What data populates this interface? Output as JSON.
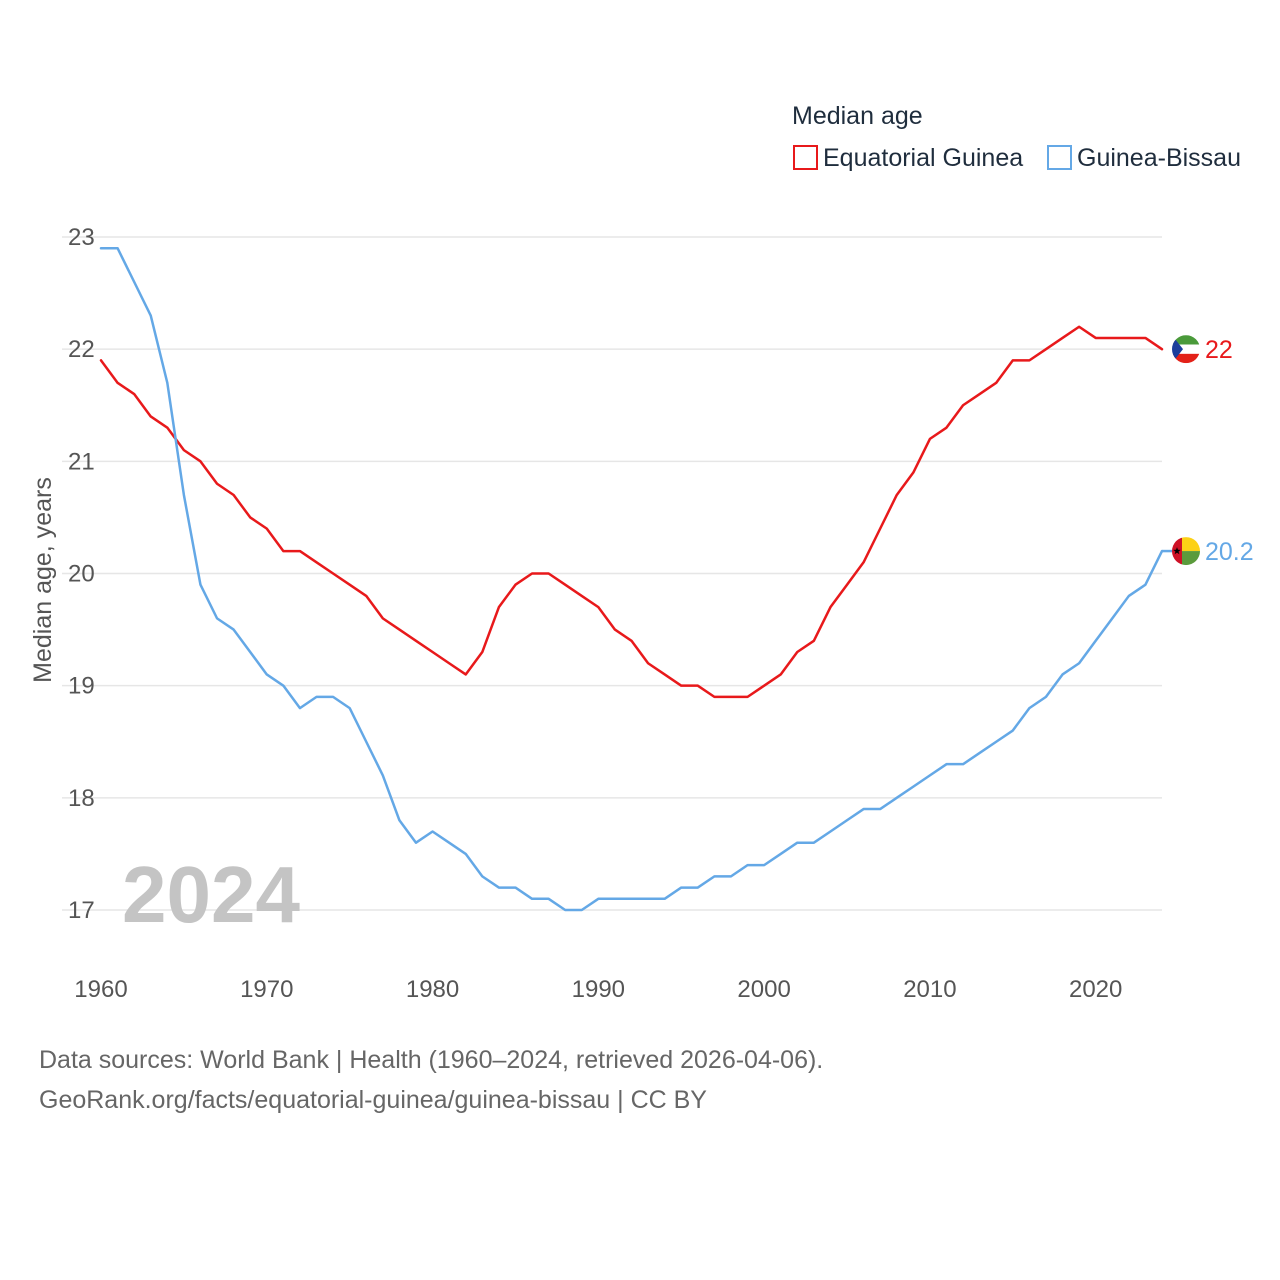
{
  "colors": {
    "equatorial_guinea": "#e8191b",
    "guinea_bissau": "#64a8e6",
    "grid": "#e6e6e6",
    "flag_eg_green": "#4a9a3a",
    "flag_eg_red": "#e32118",
    "flag_eg_blue": "#1b3e9c",
    "flag_gb_red": "#ce1126",
    "flag_gb_yellow": "#fcd116",
    "flag_gb_green": "#5b9b3c"
  },
  "source": {
    "line1": "Data sources: World Bank | Health (1960–2024, retrieved 2026-04-06).",
    "line2": "GeoRank.org/facts/equatorial-guinea/guinea-bissau | CC BY"
  },
  "chart_data": {
    "type": "line",
    "legend_title": "Median age",
    "ylabel": "Median age, years",
    "xlabel": "",
    "year_label": "2024",
    "xlim": [
      1960,
      2024
    ],
    "ylim": [
      16.5,
      23.3
    ],
    "x_ticks": [
      1960,
      1970,
      1980,
      1990,
      2000,
      2010,
      2020
    ],
    "y_ticks": [
      17,
      18,
      19,
      20,
      21,
      22,
      23
    ],
    "legend_position": "top-right",
    "x": [
      1960,
      1961,
      1962,
      1963,
      1964,
      1965,
      1966,
      1967,
      1968,
      1969,
      1970,
      1971,
      1972,
      1973,
      1974,
      1975,
      1976,
      1977,
      1978,
      1979,
      1980,
      1981,
      1982,
      1983,
      1984,
      1985,
      1986,
      1987,
      1988,
      1989,
      1990,
      1991,
      1992,
      1993,
      1994,
      1995,
      1996,
      1997,
      1998,
      1999,
      2000,
      2001,
      2002,
      2003,
      2004,
      2005,
      2006,
      2007,
      2008,
      2009,
      2010,
      2011,
      2012,
      2013,
      2014,
      2015,
      2016,
      2017,
      2018,
      2019,
      2020,
      2021,
      2022,
      2023,
      2024
    ],
    "series": [
      {
        "name": "Equatorial Guinea",
        "end_label": "22",
        "values": [
          21.9,
          21.7,
          21.6,
          21.4,
          21.3,
          21.1,
          21.0,
          20.8,
          20.7,
          20.5,
          20.4,
          20.2,
          20.2,
          20.1,
          20.0,
          19.9,
          19.8,
          19.6,
          19.5,
          19.4,
          19.3,
          19.2,
          19.1,
          19.3,
          19.7,
          19.9,
          20.0,
          20.0,
          19.9,
          19.8,
          19.7,
          19.5,
          19.4,
          19.2,
          19.1,
          19.0,
          19.0,
          18.9,
          18.9,
          18.9,
          19.0,
          19.1,
          19.3,
          19.4,
          19.7,
          19.9,
          20.1,
          20.4,
          20.7,
          20.9,
          21.2,
          21.3,
          21.5,
          21.6,
          21.7,
          21.9,
          21.9,
          22.0,
          22.1,
          22.2,
          22.1,
          22.1,
          22.1,
          22.1,
          22.0
        ]
      },
      {
        "name": "Guinea-Bissau",
        "end_label": "20.2",
        "values": [
          22.9,
          22.9,
          22.6,
          22.3,
          21.7,
          20.7,
          19.9,
          19.6,
          19.5,
          19.3,
          19.1,
          19.0,
          18.8,
          18.9,
          18.9,
          18.8,
          18.5,
          18.2,
          17.8,
          17.6,
          17.7,
          17.6,
          17.5,
          17.3,
          17.2,
          17.2,
          17.1,
          17.1,
          17.0,
          17.0,
          17.1,
          17.1,
          17.1,
          17.1,
          17.1,
          17.2,
          17.2,
          17.3,
          17.3,
          17.4,
          17.4,
          17.5,
          17.6,
          17.6,
          17.7,
          17.8,
          17.9,
          17.9,
          18.0,
          18.1,
          18.2,
          18.3,
          18.3,
          18.4,
          18.5,
          18.6,
          18.8,
          18.9,
          19.1,
          19.2,
          19.4,
          19.6,
          19.8,
          19.9,
          20.2
        ]
      }
    ]
  }
}
